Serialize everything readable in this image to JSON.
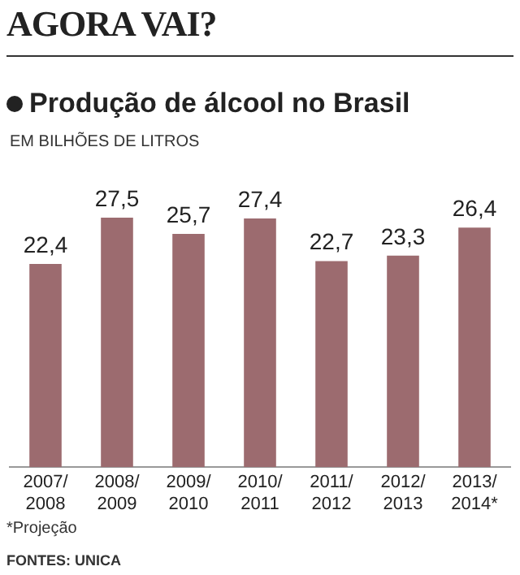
{
  "chart_data": {
    "type": "bar",
    "title": "AGORA VAI?",
    "subtitle": "Produção de álcool no Brasil",
    "ylabel": "EM BILHÕES DE LITROS",
    "categories": [
      "2007/2008",
      "2008/2009",
      "2009/2010",
      "2010/2011",
      "2011/2012",
      "2012/2013",
      "2013/2014*"
    ],
    "values": [
      22.4,
      27.5,
      25.7,
      27.4,
      22.7,
      23.3,
      26.4
    ],
    "value_labels": [
      "22,4",
      "27,5",
      "25,7",
      "27,4",
      "22,7",
      "23,3",
      "26,4"
    ],
    "color": "#9c6b6f",
    "grid": false,
    "legend": false,
    "annotations": [
      "*Projeção",
      "FONTES: UNICA"
    ]
  }
}
